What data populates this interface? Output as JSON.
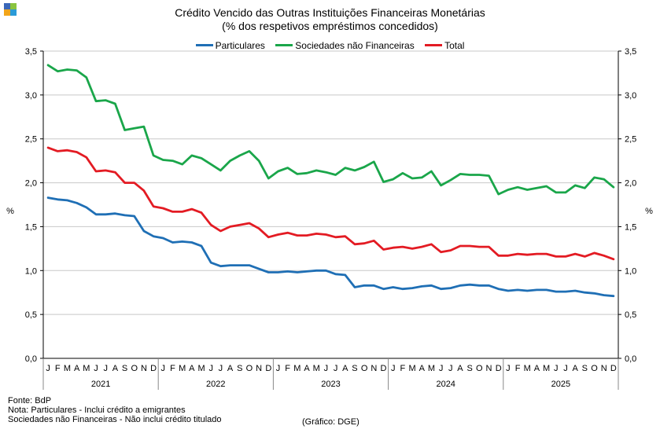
{
  "logo": {
    "colors": [
      "#3a67b8",
      "#8ac43f",
      "#f2a51a",
      "#2a9bd8"
    ]
  },
  "chart_data": {
    "type": "line",
    "title": "Crédito Vencido das Outras Instituições Financeiras Monetárias",
    "subtitle": "(% dos respetivos empréstimos concedidos)",
    "ylabel_left": "%",
    "ylabel_right": "%",
    "ylim": [
      0,
      3.5
    ],
    "yticks": [
      "0,0",
      "0,5",
      "1,0",
      "1,5",
      "2,0",
      "2,5",
      "3,0",
      "3,5"
    ],
    "grid": true,
    "legend_position": "top-center",
    "month_labels": [
      "J",
      "F",
      "M",
      "A",
      "M",
      "J",
      "J",
      "A",
      "S",
      "O",
      "N",
      "D"
    ],
    "years": [
      "2021",
      "2022",
      "2023",
      "2024",
      "2025"
    ],
    "series": [
      {
        "name": "Particulares",
        "color": "#1f6fb5",
        "values": [
          1.83,
          1.81,
          1.8,
          1.77,
          1.72,
          1.64,
          1.64,
          1.65,
          1.63,
          1.62,
          1.45,
          1.39,
          1.37,
          1.32,
          1.33,
          1.32,
          1.28,
          1.09,
          1.05,
          1.06,
          1.06,
          1.06,
          1.02,
          0.98,
          0.98,
          0.99,
          0.98,
          0.99,
          1.0,
          1.0,
          0.96,
          0.95,
          0.81,
          0.83,
          0.83,
          0.79,
          0.81,
          0.79,
          0.8,
          0.82,
          0.83,
          0.79,
          0.8,
          0.83,
          0.84,
          0.83,
          0.83,
          0.79,
          0.77,
          0.78,
          0.77,
          0.78,
          0.78,
          0.76,
          0.76,
          0.77,
          0.75,
          0.74,
          0.72,
          0.71
        ]
      },
      {
        "name": "Sociedades não Financeiras",
        "color": "#1aa64a",
        "values": [
          3.34,
          3.27,
          3.29,
          3.28,
          3.2,
          2.93,
          2.94,
          2.9,
          2.6,
          2.62,
          2.64,
          2.31,
          2.26,
          2.25,
          2.21,
          2.31,
          2.28,
          2.21,
          2.14,
          2.25,
          2.31,
          2.36,
          2.25,
          2.05,
          2.13,
          2.17,
          2.1,
          2.11,
          2.14,
          2.12,
          2.09,
          2.17,
          2.14,
          2.18,
          2.24,
          2.01,
          2.04,
          2.11,
          2.05,
          2.06,
          2.13,
          1.97,
          2.03,
          2.1,
          2.09,
          2.09,
          2.08,
          1.87,
          1.92,
          1.95,
          1.92,
          1.94,
          1.96,
          1.89,
          1.89,
          1.97,
          1.94,
          2.06,
          2.04,
          1.95
        ]
      },
      {
        "name": "Total",
        "color": "#e31b23",
        "values": [
          2.4,
          2.36,
          2.37,
          2.35,
          2.29,
          2.13,
          2.14,
          2.12,
          2.0,
          2.0,
          1.91,
          1.73,
          1.71,
          1.67,
          1.67,
          1.7,
          1.66,
          1.52,
          1.45,
          1.5,
          1.52,
          1.54,
          1.48,
          1.38,
          1.41,
          1.43,
          1.4,
          1.4,
          1.42,
          1.41,
          1.38,
          1.39,
          1.3,
          1.31,
          1.34,
          1.24,
          1.26,
          1.27,
          1.25,
          1.27,
          1.3,
          1.21,
          1.23,
          1.28,
          1.28,
          1.27,
          1.27,
          1.17,
          1.17,
          1.19,
          1.18,
          1.19,
          1.19,
          1.16,
          1.16,
          1.19,
          1.16,
          1.2,
          1.17,
          1.13
        ]
      }
    ]
  },
  "footer": {
    "line1": "Fonte: BdP",
    "line2": "Nota: Particulares - Inclui crédito a emigrantes",
    "line3": "Sociedades não Financeiras - Não inclui crédito titulado",
    "source_note": "(Gráfico: DGE)"
  }
}
